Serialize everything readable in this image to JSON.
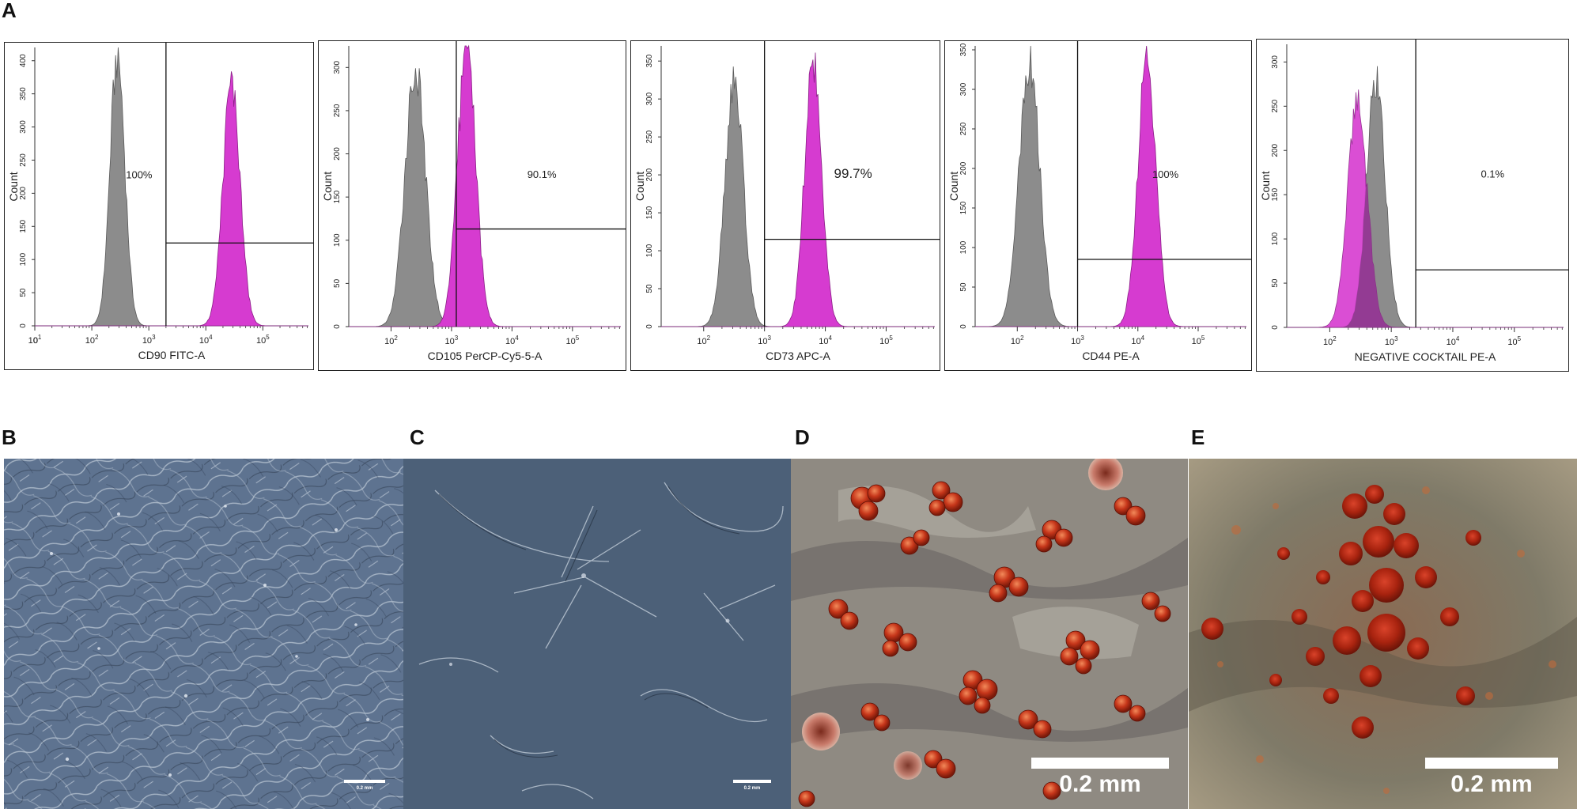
{
  "figure": {
    "panel_letters": [
      "A",
      "B",
      "C",
      "D",
      "E"
    ],
    "scale_labels": {
      "B": "0.2 mm",
      "C": "0.2 mm",
      "D": "0.2 mm",
      "E": "0.2 mm"
    }
  },
  "colors": {
    "isotype": "#8c8c8c",
    "stained": "#d63bd0",
    "overlap": "#8d3b8d"
  },
  "chart_data": [
    {
      "type": "area",
      "xlabel": "CD90 FITC-A",
      "ylabel": "Count",
      "xscale": "log",
      "xticks": [
        "0",
        "10^1",
        "10^2",
        "10^3",
        "10^4",
        "10^5"
      ],
      "xlim": [
        10,
        631000
      ],
      "ylim": [
        0,
        420
      ],
      "yticks": [
        "0",
        "50",
        "100",
        "150",
        "200",
        "250",
        "300",
        "350",
        "400"
      ],
      "gate_x": 2000,
      "gate_y": 125,
      "gate_label": "100%",
      "series": [
        {
          "role": "isotype",
          "peak_log10": 2.45,
          "width": 0.13,
          "height": 410
        },
        {
          "role": "stained",
          "peak_log10": 4.45,
          "width": 0.15,
          "height": 370
        }
      ]
    },
    {
      "type": "area",
      "xlabel": "CD105 PerCP-Cy5-5-A",
      "ylabel": "Count",
      "xscale": "log",
      "xticks": [
        "10^2",
        "10^3",
        "10^4",
        "10^5"
      ],
      "xlim": [
        20,
        631000
      ],
      "ylim": [
        0,
        325
      ],
      "yticks": [
        "0",
        "50",
        "100",
        "150",
        "200",
        "250",
        "300"
      ],
      "gate_x": 1200,
      "gate_y": 113,
      "gate_label": "90.1%",
      "series": [
        {
          "role": "isotype",
          "peak_log10": 2.4,
          "width": 0.17,
          "height": 300
        },
        {
          "role": "stained",
          "peak_log10": 3.25,
          "width": 0.15,
          "height": 325
        }
      ]
    },
    {
      "type": "area",
      "xlabel": "CD73 APC-A",
      "ylabel": "Count",
      "xscale": "log",
      "xticks": [
        "10^2",
        "10^3",
        "10^4",
        "10^5"
      ],
      "xlim": [
        20,
        631000
      ],
      "ylim": [
        0,
        370
      ],
      "yticks": [
        "0",
        "50",
        "100",
        "150",
        "200",
        "250",
        "300",
        "350"
      ],
      "gate_x": 1000,
      "gate_y": 115,
      "gate_label": "99.7%",
      "series": [
        {
          "role": "isotype",
          "peak_log10": 2.5,
          "width": 0.15,
          "height": 325
        },
        {
          "role": "stained",
          "peak_log10": 3.8,
          "width": 0.14,
          "height": 355
        }
      ]
    },
    {
      "type": "area",
      "xlabel": "CD44 PE-A",
      "ylabel": "Count",
      "xscale": "log",
      "xticks": [
        "10^2",
        "10^3",
        "10^4",
        "10^5"
      ],
      "xlim": [
        20,
        631000
      ],
      "ylim": [
        0,
        355
      ],
      "yticks": [
        "0",
        "50",
        "100",
        "150",
        "200",
        "250",
        "300",
        "350"
      ],
      "gate_x": 1000,
      "gate_y": 85,
      "gate_label": "100%",
      "series": [
        {
          "role": "isotype",
          "peak_log10": 2.2,
          "width": 0.17,
          "height": 340
        },
        {
          "role": "stained",
          "peak_log10": 4.15,
          "width": 0.15,
          "height": 340
        }
      ]
    },
    {
      "type": "area",
      "xlabel": "NEGATIVE COCKTAIL PE-A",
      "ylabel": "Count",
      "xscale": "log",
      "xticks": [
        "10^2",
        "10^3",
        "10^4",
        "10^5"
      ],
      "xlim": [
        20,
        631000
      ],
      "ylim": [
        0,
        320
      ],
      "yticks": [
        "0",
        "50",
        "100",
        "150",
        "200",
        "250",
        "300"
      ],
      "gate_x": 2500,
      "gate_y": 65,
      "gate_label": "0.1%",
      "series": [
        {
          "role": "isotype",
          "peak_log10": 2.75,
          "width": 0.15,
          "height": 285
        },
        {
          "role": "stained",
          "peak_log10": 2.45,
          "width": 0.16,
          "height": 255
        }
      ]
    }
  ]
}
